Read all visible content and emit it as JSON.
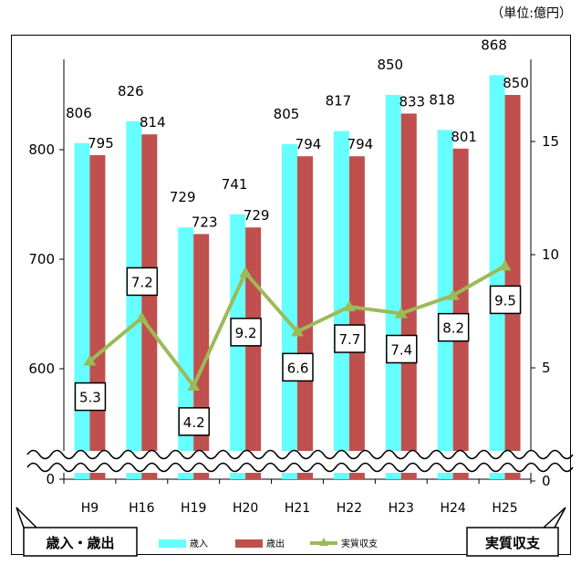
{
  "unit_label": "（単位:億円）",
  "chart_data": {
    "type": "bar",
    "categories": [
      "H9",
      "H16",
      "H19",
      "H20",
      "H21",
      "H22",
      "H23",
      "H24",
      "H25"
    ],
    "series": [
      {
        "name": "歳入",
        "kind": "bar",
        "axis": "left",
        "color": "#66FFFF",
        "values": [
          806,
          826,
          729,
          741,
          805,
          817,
          850,
          818,
          868
        ]
      },
      {
        "name": "歳出",
        "kind": "bar",
        "axis": "left",
        "color": "#C0504D",
        "values": [
          795,
          814,
          723,
          729,
          794,
          794,
          833,
          801,
          850
        ]
      },
      {
        "name": "実質収支",
        "kind": "line",
        "axis": "right",
        "color": "#9BBB59",
        "values": [
          5.3,
          7.2,
          4.2,
          9.2,
          6.6,
          7.7,
          7.4,
          8.2,
          9.5
        ]
      }
    ],
    "left_axis": {
      "title": "歳入・歳出",
      "ticks": [
        0,
        600,
        700,
        800
      ],
      "break": true,
      "range": [
        550,
        900
      ]
    },
    "right_axis": {
      "title": "実質収支",
      "ticks": [
        0,
        5,
        10,
        15
      ],
      "range": [
        -5,
        20
      ]
    },
    "grid": false,
    "legend": "bottom"
  }
}
